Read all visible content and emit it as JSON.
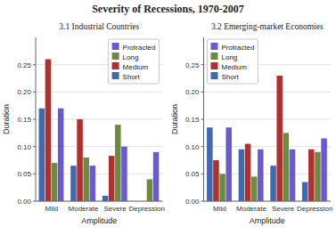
{
  "title": "Severity of Recessions, 1970-2007",
  "chart_data": [
    {
      "type": "bar",
      "title": "3.1 Industrial Countries",
      "categories": [
        "Mild",
        "Moderate",
        "Severe",
        "Depression"
      ],
      "xlabel": "Amplitude",
      "ylabel": "Duration",
      "series": [
        {
          "name": "Short",
          "color": "#4169B0",
          "values": [
            0.17,
            0.065,
            0.01,
            0.0
          ]
        },
        {
          "name": "Medium",
          "color": "#B03030",
          "values": [
            0.26,
            0.15,
            0.083,
            0.0
          ]
        },
        {
          "name": "Long",
          "color": "#6B8C3E",
          "values": [
            0.07,
            0.08,
            0.14,
            0.04
          ]
        },
        {
          "name": "Protracted",
          "color": "#6A5ACD",
          "values": [
            0.17,
            0.065,
            0.1,
            0.09
          ]
        }
      ],
      "ylim": [
        0.0,
        0.3
      ],
      "yticks": [
        {
          "value": 0,
          "label": "0.00"
        },
        0.05,
        {
          "value": 0.1,
          "label": "0.10"
        },
        0.15,
        {
          "value": 0.2,
          "label": "0.20"
        },
        0.25
      ],
      "grid": true,
      "legend": "upper right"
    },
    {
      "type": "bar",
      "title": "3.2 Emerging-market Economies",
      "categories": [
        "Mild",
        "Moderate",
        "Severe",
        "Depression"
      ],
      "xlabel": "Amplitude",
      "ylabel": "Duration",
      "series": [
        {
          "name": "Short",
          "color": "#4169B0",
          "values": [
            0.135,
            0.095,
            0.065,
            0.035
          ]
        },
        {
          "name": "Medium",
          "color": "#B03030",
          "values": [
            0.075,
            0.105,
            0.23,
            0.095
          ]
        },
        {
          "name": "Long",
          "color": "#6B8C3E",
          "values": [
            0.05,
            0.045,
            0.125,
            0.09
          ]
        },
        {
          "name": "Protracted",
          "color": "#6A5ACD",
          "values": [
            0.135,
            0.095,
            0.095,
            0.115
          ]
        }
      ],
      "ylim": [
        0.0,
        0.3
      ],
      "yticks": [
        {
          "value": 0,
          "label": "0.00"
        },
        0.05,
        {
          "value": 0.1,
          "label": "0.10"
        },
        0.15,
        {
          "value": 0.2,
          "label": "0.20"
        },
        0.25
      ],
      "grid": true,
      "legend": "upper left"
    }
  ]
}
